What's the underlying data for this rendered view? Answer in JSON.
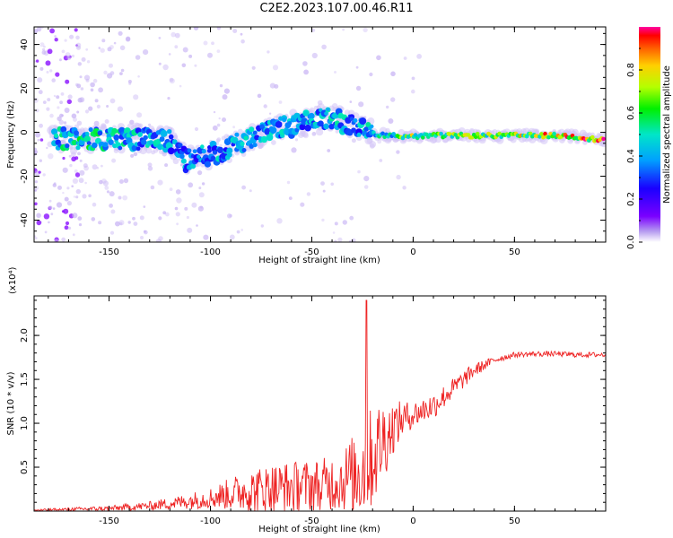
{
  "title": "C2E2.2023.107.00.46.R11",
  "colors": {
    "snr_line": "#ee2222",
    "axis": "#000000",
    "background": "#ffffff"
  },
  "chart_data": [
    {
      "type": "heatmap",
      "title": "C2E2.2023.107.00.46.R11",
      "xlabel": "Height of straight line (km)",
      "ylabel": "Frequency (Hz)",
      "xlim": [
        -187,
        95
      ],
      "ylim": [
        -50,
        48
      ],
      "xticks": [
        -150,
        -100,
        -50,
        0,
        50
      ],
      "xtick_labels": [
        "-150",
        "-100",
        "-50",
        "0",
        "50"
      ],
      "yticks": [
        -40,
        -20,
        0,
        20,
        40
      ],
      "ytick_labels": [
        "-40",
        "-20",
        "0",
        "20",
        "40"
      ],
      "colormap": "rainbow (purple to red)",
      "colorbar": {
        "label": "Normalized spectral amplitude",
        "range": [
          0,
          1
        ],
        "ticks": [
          0.0,
          0.2,
          0.4,
          0.6,
          0.8
        ],
        "tick_labels": [
          "0.0",
          "0.2",
          "0.4",
          "0.6",
          "0.8"
        ]
      },
      "ridge": {
        "description": "main spectral ridge (height km, frequency Hz, amplitude 0-1)",
        "points": [
          [
            -175,
            -3,
            0.5
          ],
          [
            -160,
            -3,
            0.55
          ],
          [
            -145,
            -3,
            0.5
          ],
          [
            -130,
            -3,
            0.45
          ],
          [
            -120,
            -4,
            0.45
          ],
          [
            -112,
            -13,
            0.4
          ],
          [
            -100,
            -10,
            0.45
          ],
          [
            -90,
            -7,
            0.45
          ],
          [
            -80,
            -2,
            0.45
          ],
          [
            -70,
            1,
            0.45
          ],
          [
            -60,
            3,
            0.45
          ],
          [
            -50,
            5,
            0.45
          ],
          [
            -40,
            7,
            0.5
          ],
          [
            -33,
            4,
            0.45
          ],
          [
            -25,
            1,
            0.45
          ],
          [
            -18,
            -1,
            0.5
          ],
          [
            -10,
            -1.5,
            0.6
          ],
          [
            0,
            -2,
            0.75
          ],
          [
            10,
            -1.5,
            0.7
          ],
          [
            20,
            -1.5,
            0.7
          ],
          [
            30,
            -1.5,
            0.72
          ],
          [
            40,
            -1.5,
            0.75
          ],
          [
            50,
            -1.5,
            0.78
          ],
          [
            60,
            -1.5,
            0.82
          ],
          [
            70,
            -1.5,
            0.85
          ],
          [
            80,
            -2,
            0.88
          ],
          [
            88,
            -3,
            0.95
          ],
          [
            92,
            -3.5,
            1.0
          ]
        ]
      }
    },
    {
      "type": "line",
      "xlabel": "Height of straight line (km)",
      "ylabel": "SNR (10 * v/v)",
      "y_multiplier": "(x10⁴)",
      "xlim": [
        -187,
        95
      ],
      "ylim": [
        0,
        2.45
      ],
      "xticks": [
        -150,
        -100,
        -50,
        0,
        50
      ],
      "xtick_labels": [
        "-150",
        "-100",
        "-50",
        "0",
        "50"
      ],
      "yticks": [
        0.5,
        1.0,
        1.5,
        2.0
      ],
      "ytick_labels": [
        "0.5",
        "1.0",
        "1.5",
        "2.0"
      ],
      "series": [
        {
          "name": "SNR",
          "envelope": {
            "x": [
              -187,
              -170,
              -150,
              -130,
              -115,
              -100,
              -85,
              -70,
              -55,
              -45,
              -35,
              -27,
              -22,
              -15,
              -10,
              -5,
              0,
              10,
              20,
              30,
              40,
              50,
              60,
              70,
              80,
              95
            ],
            "base": [
              0.01,
              0.02,
              0.03,
              0.06,
              0.1,
              0.15,
              0.22,
              0.25,
              0.28,
              0.3,
              0.35,
              0.45,
              0.55,
              0.8,
              0.95,
              1.05,
              1.1,
              1.2,
              1.4,
              1.6,
              1.72,
              1.78,
              1.79,
              1.79,
              1.78,
              1.78
            ],
            "amplitude": [
              0.01,
              0.02,
              0.03,
              0.05,
              0.08,
              0.12,
              0.22,
              0.3,
              0.3,
              0.3,
              0.35,
              0.55,
              0.6,
              0.5,
              0.3,
              0.2,
              0.15,
              0.15,
              0.12,
              0.08,
              0.04,
              0.03,
              0.03,
              0.03,
              0.03,
              0.03
            ]
          },
          "peak": {
            "x": -23,
            "y": 2.4
          }
        }
      ]
    }
  ]
}
